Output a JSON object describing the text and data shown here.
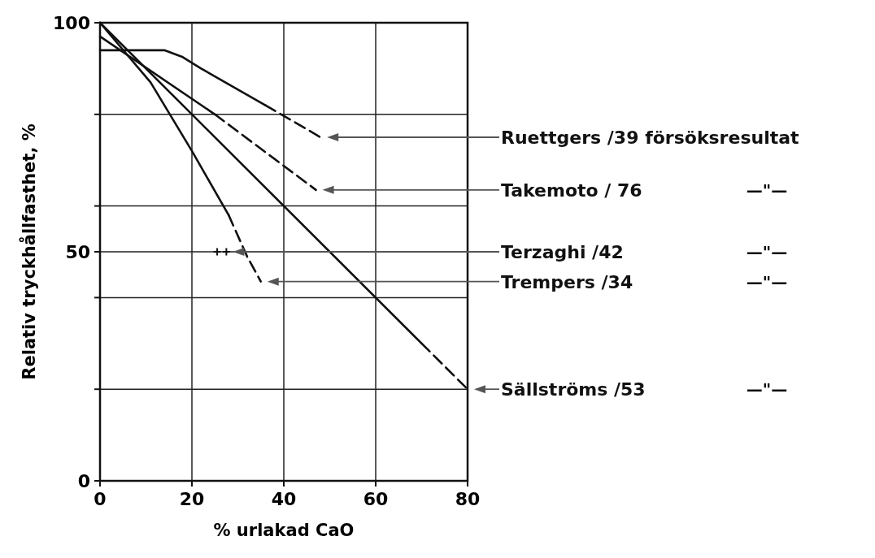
{
  "chart_data": {
    "type": "line",
    "xlabel": "% urlakad CaO",
    "ylabel": "Relativ tryckhållfasthet, %",
    "xlim": [
      0,
      80
    ],
    "ylim": [
      0,
      100
    ],
    "xticks": [
      0,
      20,
      40,
      60,
      80
    ],
    "yticks": [
      0,
      {
        "value": 20,
        "label": null
      },
      {
        "value": 40,
        "label": null
      },
      50,
      {
        "value": 60,
        "label": null
      },
      {
        "value": 80,
        "label": null
      },
      100
    ],
    "grid": true,
    "series": [
      {
        "color": "#111111",
        "line_style": "solid",
        "x": [
          0,
          14,
          18,
          22,
          36
        ],
        "values": [
          94,
          94,
          92.5,
          90,
          82
        ]
      },
      {
        "name": "Ruettgers /39 försöksresultat",
        "color": "#111111",
        "line_style": "dashed",
        "x": [
          36,
          48
        ],
        "values": [
          82,
          75
        ]
      },
      {
        "color": "#111111",
        "line_style": "solid",
        "x": [
          0,
          25
        ],
        "values": [
          97,
          80
        ]
      },
      {
        "name": "Takemoto / 76",
        "color": "#111111",
        "line_style": "dashed",
        "x": [
          25,
          47
        ],
        "values": [
          80,
          63.5
        ]
      },
      {
        "name": "Terzaghi /42",
        "type": "scatter",
        "marker": "cross",
        "color": "#111111",
        "x": [
          25.5,
          27.5
        ],
        "values": [
          50,
          50
        ]
      },
      {
        "color": "#111111",
        "line_style": "solid",
        "x": [
          0,
          11,
          20,
          28
        ],
        "values": [
          100,
          87,
          72,
          58
        ]
      },
      {
        "name": "Trempers /34",
        "color": "#111111",
        "line_style": "dashed",
        "x": [
          28,
          32,
          35
        ],
        "values": [
          58,
          49,
          43.5
        ]
      },
      {
        "color": "#111111",
        "line_style": "solid",
        "x": [
          0,
          70
        ],
        "values": [
          100,
          30
        ]
      },
      {
        "name": "Sällströms /53",
        "color": "#111111",
        "line_style": "dashed",
        "x": [
          70,
          80
        ],
        "values": [
          30,
          20
        ]
      }
    ],
    "annotations": [
      "—\"—",
      "—\"—",
      "—\"—",
      "—\"—"
    ]
  }
}
